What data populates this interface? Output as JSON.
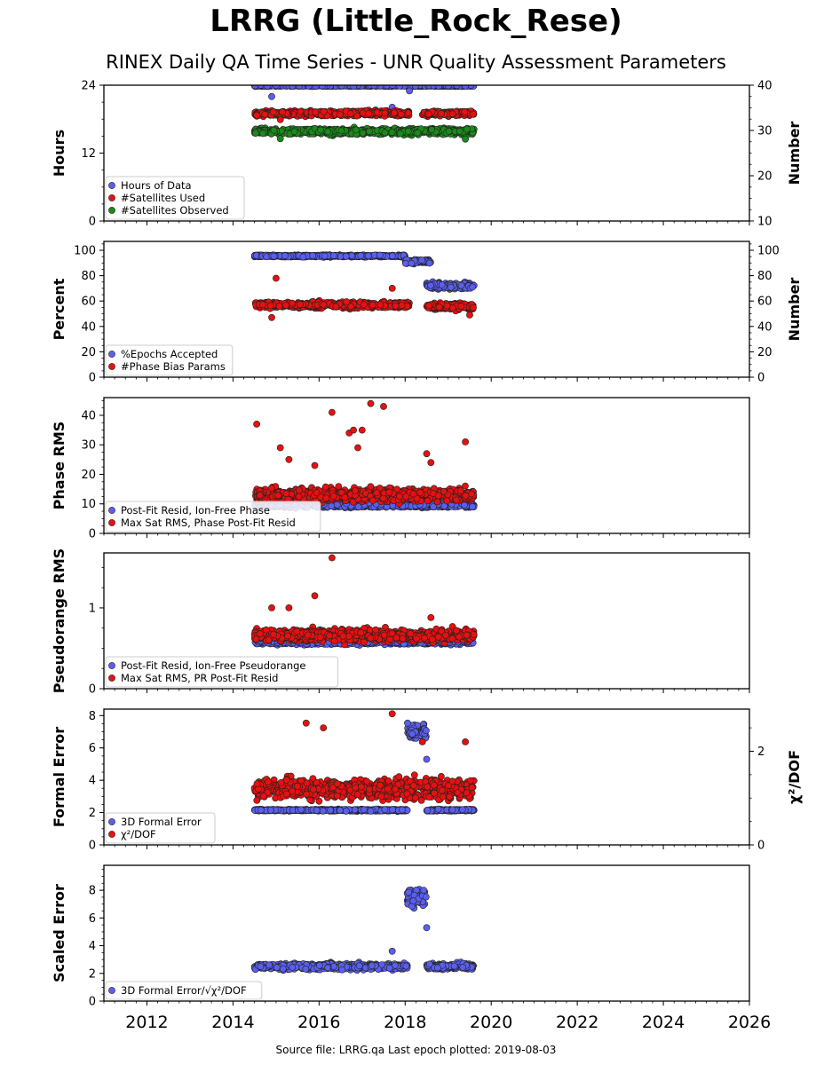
{
  "title": "LRRG (Little_Rock_Rese)",
  "subtitle": "RINEX Daily QA Time Series - UNR Quality Assessment Parameters",
  "footer": "Source file: LRRG.qa Last epoch plotted: 2019-08-03",
  "colors": {
    "blue": "#5a5ff0",
    "red": "#e81010",
    "green": "#1a8a1a"
  },
  "chart_data": [
    {
      "type": "scatter",
      "ylabel": "Hours",
      "ylabel_right": "Number",
      "xlim": [
        2011.0,
        2026.0
      ],
      "ylim": [
        0,
        24
      ],
      "ylim_right": [
        10,
        40
      ],
      "yticks": [
        "0",
        "12",
        "24"
      ],
      "yticks_right": [
        "10",
        "20",
        "30",
        "40"
      ],
      "legend": "bottom-left",
      "series": [
        {
          "name": "Hours of Data",
          "color": "blue",
          "axis": "left",
          "date_range": [
            2014.5,
            2019.6
          ],
          "base": 23.9,
          "spread": 0.15,
          "outliers": [
            [
              2014.9,
              22.0
            ],
            [
              2015.0,
              24.0
            ],
            [
              2017.7,
              20.1
            ],
            [
              2018.1,
              23.0
            ]
          ]
        },
        {
          "name": "#Satellites Used",
          "color": "red",
          "axis": "right",
          "date_range": [
            2014.5,
            2019.6
          ],
          "base": 33.8,
          "spread": 0.9,
          "gap": [
            2018.1,
            2018.4
          ],
          "outliers": [
            [
              2015.1,
              32.4
            ]
          ]
        },
        {
          "name": "#Satellites Observed",
          "color": "green",
          "axis": "right",
          "date_range": [
            2014.5,
            2019.6
          ],
          "base": 29.8,
          "spread": 1.1,
          "outliers": [
            [
              2015.1,
              28.2
            ],
            [
              2019.4,
              28.1
            ]
          ]
        }
      ]
    },
    {
      "type": "scatter",
      "ylabel": "Percent",
      "ylabel_right": "Number",
      "xlim": [
        2011.0,
        2026.0
      ],
      "ylim": [
        0,
        107
      ],
      "ylim_right": [
        0,
        107
      ],
      "yticks": [
        "0",
        "20",
        "40",
        "60",
        "80",
        "100"
      ],
      "yticks_right": [
        "0",
        "20",
        "40",
        "60",
        "80",
        "100"
      ],
      "legend": "bottom-left",
      "series": [
        {
          "name": "%Epochs Accepted",
          "color": "blue",
          "axis": "left",
          "segments": [
            [
              2014.5,
              2018.0,
              95.5,
              1.2
            ],
            [
              2018.0,
              2018.6,
              91,
              2.5
            ],
            [
              2018.5,
              2019.6,
              72,
              4
            ]
          ]
        },
        {
          "name": "#Phase Bias Params",
          "color": "red",
          "axis": "right",
          "segments": [
            [
              2014.5,
              2018.1,
              57,
              4
            ],
            [
              2018.5,
              2019.6,
              56,
              4
            ]
          ],
          "outliers": [
            [
              2014.9,
              47
            ],
            [
              2015.0,
              78
            ],
            [
              2017.7,
              70
            ],
            [
              2019.5,
              49
            ]
          ]
        }
      ]
    },
    {
      "type": "scatter",
      "ylabel": "Phase RMS",
      "xlim": [
        2011.0,
        2026.0
      ],
      "ylim": [
        0,
        46
      ],
      "yticks": [
        "0",
        "10",
        "20",
        "30",
        "40"
      ],
      "legend": "bottom-left",
      "series": [
        {
          "name": "Post-Fit Resid, Ion-Free Phase",
          "color": "blue",
          "axis": "left",
          "date_range": [
            2014.5,
            2019.6
          ],
          "base": 9.5,
          "spread": 1.2
        },
        {
          "name": "Max Sat RMS, Phase Post-Fit Resid",
          "color": "red",
          "axis": "left",
          "date_range": [
            2014.5,
            2019.6
          ],
          "base": 13,
          "spread": 3.5,
          "outliers": [
            [
              2014.55,
              37
            ],
            [
              2016.3,
              41
            ],
            [
              2016.7,
              34
            ],
            [
              2016.8,
              35
            ],
            [
              2017.2,
              44
            ],
            [
              2017.5,
              43
            ],
            [
              2017.0,
              35
            ],
            [
              2015.1,
              29
            ],
            [
              2015.3,
              25
            ],
            [
              2016.9,
              29
            ],
            [
              2018.5,
              27
            ],
            [
              2019.4,
              31
            ],
            [
              2015.9,
              23
            ],
            [
              2018.6,
              24
            ]
          ]
        }
      ]
    },
    {
      "type": "scatter",
      "ylabel": "Pseudorange RMS",
      "xlim": [
        2011.0,
        2026.0
      ],
      "ylim": [
        0,
        1.68
      ],
      "yticks": [
        "0",
        "1"
      ],
      "legend": "bottom-left",
      "series": [
        {
          "name": "Post-Fit Resid, Ion-Free Pseudorange",
          "color": "blue",
          "axis": "left",
          "date_range": [
            2014.5,
            2019.6
          ],
          "base": 0.58,
          "spread": 0.05
        },
        {
          "name": "Max Sat RMS, PR Post-Fit Resid",
          "color": "red",
          "axis": "left",
          "date_range": [
            2014.5,
            2019.6
          ],
          "base": 0.66,
          "spread": 0.12,
          "outliers": [
            [
              2016.3,
              1.62
            ],
            [
              2015.9,
              1.15
            ],
            [
              2015.3,
              1.0
            ],
            [
              2014.9,
              1.0
            ],
            [
              2018.6,
              0.88
            ]
          ]
        }
      ]
    },
    {
      "type": "scatter",
      "ylabel": "Formal Error",
      "ylabel_right": "χ²/DOF",
      "xlim": [
        2011.0,
        2026.0
      ],
      "ylim": [
        0,
        8.4
      ],
      "ylim_right": [
        0,
        2.9
      ],
      "yticks": [
        "0",
        "2",
        "4",
        "6",
        "8"
      ],
      "yticks_right": [
        "0",
        "2"
      ],
      "legend": "bottom-left",
      "series": [
        {
          "name": "3D Formal Error",
          "color": "blue",
          "axis": "left",
          "segments": [
            [
              2014.5,
              2018.05,
              2.15,
              0.08
            ],
            [
              2018.05,
              2018.5,
              7.0,
              0.7
            ],
            [
              2018.5,
              2019.6,
              2.15,
              0.08
            ]
          ],
          "outliers": [
            [
              2018.5,
              5.3
            ]
          ]
        },
        {
          "name": "χ²/DOF",
          "color": "red",
          "axis": "right",
          "date_range": [
            2014.5,
            2019.6
          ],
          "base": 1.2,
          "spread": 0.35,
          "outliers": [
            [
              2017.7,
              2.8
            ],
            [
              2015.7,
              2.6
            ],
            [
              2016.1,
              2.5
            ],
            [
              2018.4,
              2.2
            ],
            [
              2019.4,
              2.2
            ]
          ]
        }
      ]
    },
    {
      "type": "scatter",
      "ylabel": "Scaled Error",
      "xlim": [
        2011.0,
        2026.0
      ],
      "ylim": [
        0,
        9.8
      ],
      "yticks": [
        "0",
        "2",
        "4",
        "6",
        "8"
      ],
      "xticks": [
        "2012",
        "2014",
        "2016",
        "2018",
        "2020",
        "2022",
        "2024",
        "2026"
      ],
      "legend": "bottom-left",
      "series": [
        {
          "name": "3D Formal Error/√χ²/DOF",
          "color": "blue",
          "axis": "left",
          "segments": [
            [
              2014.5,
              2018.05,
              2.5,
              0.35
            ],
            [
              2018.05,
              2018.5,
              7.5,
              1.0
            ],
            [
              2018.5,
              2019.6,
              2.5,
              0.35
            ]
          ],
          "outliers": [
            [
              2018.5,
              5.3
            ],
            [
              2017.7,
              3.6
            ]
          ]
        }
      ]
    }
  ]
}
